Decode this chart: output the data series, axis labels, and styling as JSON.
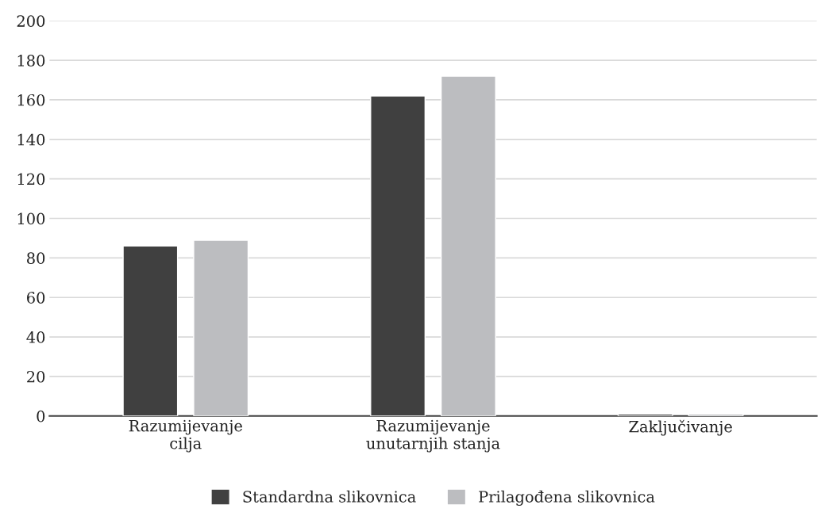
{
  "chart_data": {
    "type": "bar",
    "categories": [
      "Razumijevanje\ncilja",
      "Razumijevanje\nunutarnjih stanja",
      "Zaključivanje"
    ],
    "series": [
      {
        "name": "Standardna slikovnica",
        "color": "#404040",
        "values": [
          86,
          162,
          1
        ]
      },
      {
        "name": "Prilagođena slikovnica",
        "color": "#bcbdc0",
        "values": [
          89,
          172,
          1
        ]
      }
    ],
    "ylim": [
      0,
      200
    ],
    "yticks": [
      0,
      20,
      40,
      60,
      80,
      100,
      120,
      140,
      160,
      180,
      200
    ],
    "grid": "y",
    "legend": "bottom"
  }
}
